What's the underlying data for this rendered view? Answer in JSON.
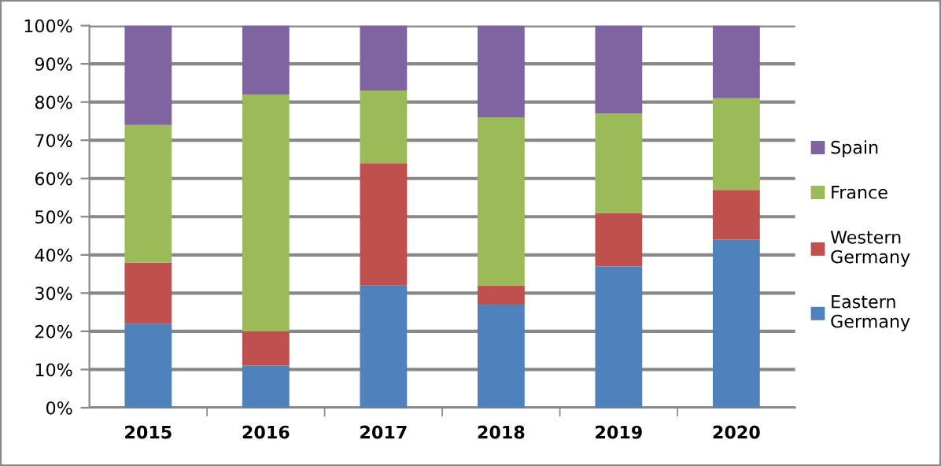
{
  "chart_data": {
    "type": "bar",
    "stacked": true,
    "categories": [
      "2015",
      "2016",
      "2017",
      "2018",
      "2019",
      "2020"
    ],
    "series": [
      {
        "name": "Eastern\nGermany",
        "color": "#4f81bd",
        "values": [
          22,
          11,
          32,
          27,
          37,
          44
        ]
      },
      {
        "name": "Western\nGermany",
        "color": "#c0504d",
        "values": [
          16,
          9,
          32,
          5,
          14,
          13
        ]
      },
      {
        "name": "France",
        "color": "#9bbb59",
        "values": [
          36,
          62,
          19,
          44,
          26,
          24
        ]
      },
      {
        "name": "Spain",
        "color": "#8064a2",
        "values": [
          26,
          18,
          17,
          24,
          23,
          19
        ]
      }
    ],
    "ylim": [
      0,
      100
    ],
    "yticks": [
      {
        "value": 0,
        "label": "0%"
      },
      {
        "value": 10,
        "label": "10%"
      },
      {
        "value": 20,
        "label": "20%"
      },
      {
        "value": 30,
        "label": "30%"
      },
      {
        "value": 40,
        "label": "40%"
      },
      {
        "value": 50,
        "label": "50%"
      },
      {
        "value": 60,
        "label": "60%"
      },
      {
        "value": 70,
        "label": "70%"
      },
      {
        "value": 80,
        "label": "80%"
      },
      {
        "value": 90,
        "label": "90%"
      },
      {
        "value": 100,
        "label": "100%"
      }
    ],
    "grid": "y",
    "legend": "right"
  }
}
